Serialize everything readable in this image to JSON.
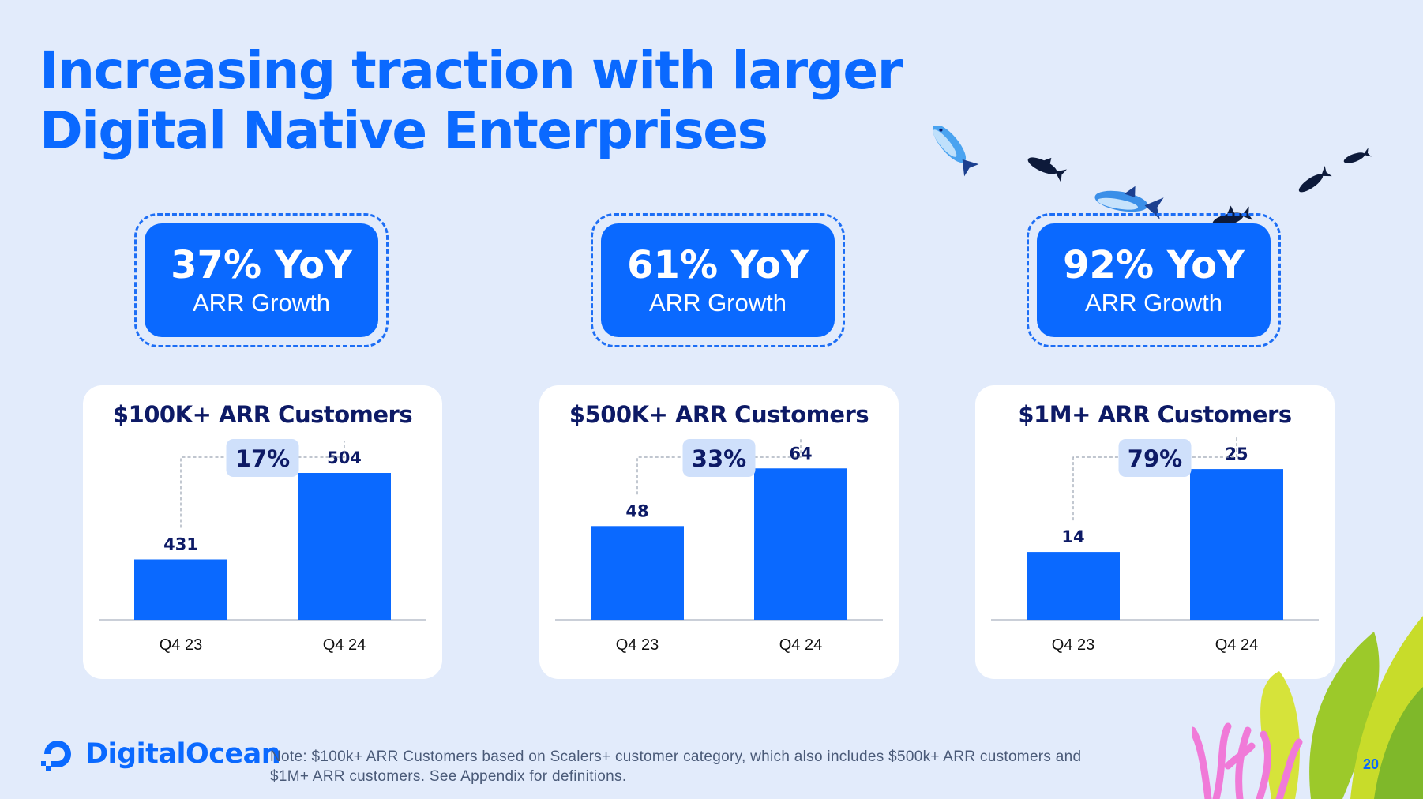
{
  "title": {
    "line1": "Increasing traction with larger",
    "line2": "Digital Native Enterprises"
  },
  "kpis": [
    {
      "value": "37% YoY",
      "label": "ARR Growth"
    },
    {
      "value": "61% YoY",
      "label": "ARR Growth"
    },
    {
      "value": "92% YoY",
      "label": "ARR Growth"
    }
  ],
  "chart_data": [
    {
      "type": "bar",
      "title": "$100K+ ARR Customers",
      "categories": [
        "Q4 23",
        "Q4 24"
      ],
      "values": [
        431,
        504
      ],
      "growth_label": "17%",
      "ylim": [
        380,
        520
      ],
      "bar_color": "#0a69ff"
    },
    {
      "type": "bar",
      "title": "$500K+ ARR Customers",
      "categories": [
        "Q4 23",
        "Q4 24"
      ],
      "values": [
        48,
        64
      ],
      "growth_label": "33%",
      "ylim": [
        22,
        68
      ],
      "bar_color": "#0a69ff"
    },
    {
      "type": "bar",
      "title": "$1M+ ARR Customers",
      "categories": [
        "Q4 23",
        "Q4 24"
      ],
      "values": [
        14,
        25
      ],
      "growth_label": "79%",
      "ylim": [
        5,
        27
      ],
      "bar_color": "#0a69ff"
    }
  ],
  "footer": {
    "logo_text": "DigitalOcean",
    "note": "Note: $100k+ ARR Customers based on Scalers+ customer category, which also includes $500k+ ARR customers and $1M+ ARR customers. See Appendix for definitions.",
    "page_number": "20"
  },
  "colors": {
    "background": "#e2ebfb",
    "accent": "#0a69ff",
    "navy": "#0d1a66",
    "growth_pill": "#cfe0fb"
  },
  "icons": [
    "digitalocean-logo-icon",
    "fish-icon",
    "coral-icon",
    "leaf-icon"
  ]
}
